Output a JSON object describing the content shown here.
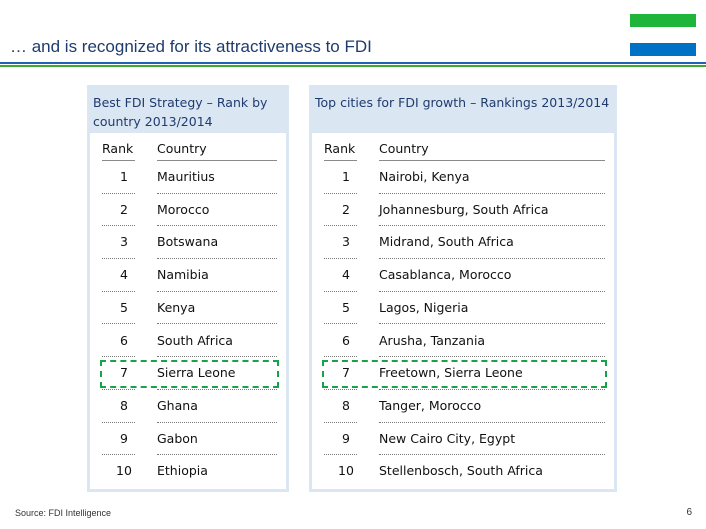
{
  "slide": {
    "title": "… and is recognized for its attractiveness to FDI",
    "source": "Source: FDI Intelligence",
    "page_number": "6",
    "colors": {
      "title": "#1f3b6e",
      "panel": "#dbe6f3",
      "highlight": "#17a34a",
      "flag_green": "#1eb53a",
      "flag_blue": "#0072c6"
    }
  },
  "left_table": {
    "title": "Best FDI Strategy – Rank by country 2013/2014",
    "col_rank": "Rank",
    "col_name": "Country",
    "highlight_rank": 7,
    "rows": [
      {
        "rank": "1",
        "name": "Mauritius"
      },
      {
        "rank": "2",
        "name": "Morocco"
      },
      {
        "rank": "3",
        "name": "Botswana"
      },
      {
        "rank": "4",
        "name": "Namibia"
      },
      {
        "rank": "5",
        "name": "Kenya"
      },
      {
        "rank": "6",
        "name": "South Africa"
      },
      {
        "rank": "7",
        "name": "Sierra Leone"
      },
      {
        "rank": "8",
        "name": "Ghana"
      },
      {
        "rank": "9",
        "name": "Gabon"
      },
      {
        "rank": "10",
        "name": "Ethiopia"
      }
    ]
  },
  "right_table": {
    "title": "Top cities for FDI growth – Rankings 2013/2014",
    "col_rank": "Rank",
    "col_name": "Country",
    "highlight_rank": 7,
    "rows": [
      {
        "rank": "1",
        "name": "Nairobi, Kenya"
      },
      {
        "rank": "2",
        "name": "Johannesburg, South Africa"
      },
      {
        "rank": "3",
        "name": "Midrand, South Africa"
      },
      {
        "rank": "4",
        "name": "Casablanca, Morocco"
      },
      {
        "rank": "5",
        "name": "Lagos, Nigeria"
      },
      {
        "rank": "6",
        "name": "Arusha, Tanzania"
      },
      {
        "rank": "7",
        "name": "Freetown, Sierra Leone"
      },
      {
        "rank": "8",
        "name": "Tanger, Morocco"
      },
      {
        "rank": "9",
        "name": "New Cairo City, Egypt"
      },
      {
        "rank": "10",
        "name": "Stellenbosch, South Africa"
      }
    ]
  }
}
